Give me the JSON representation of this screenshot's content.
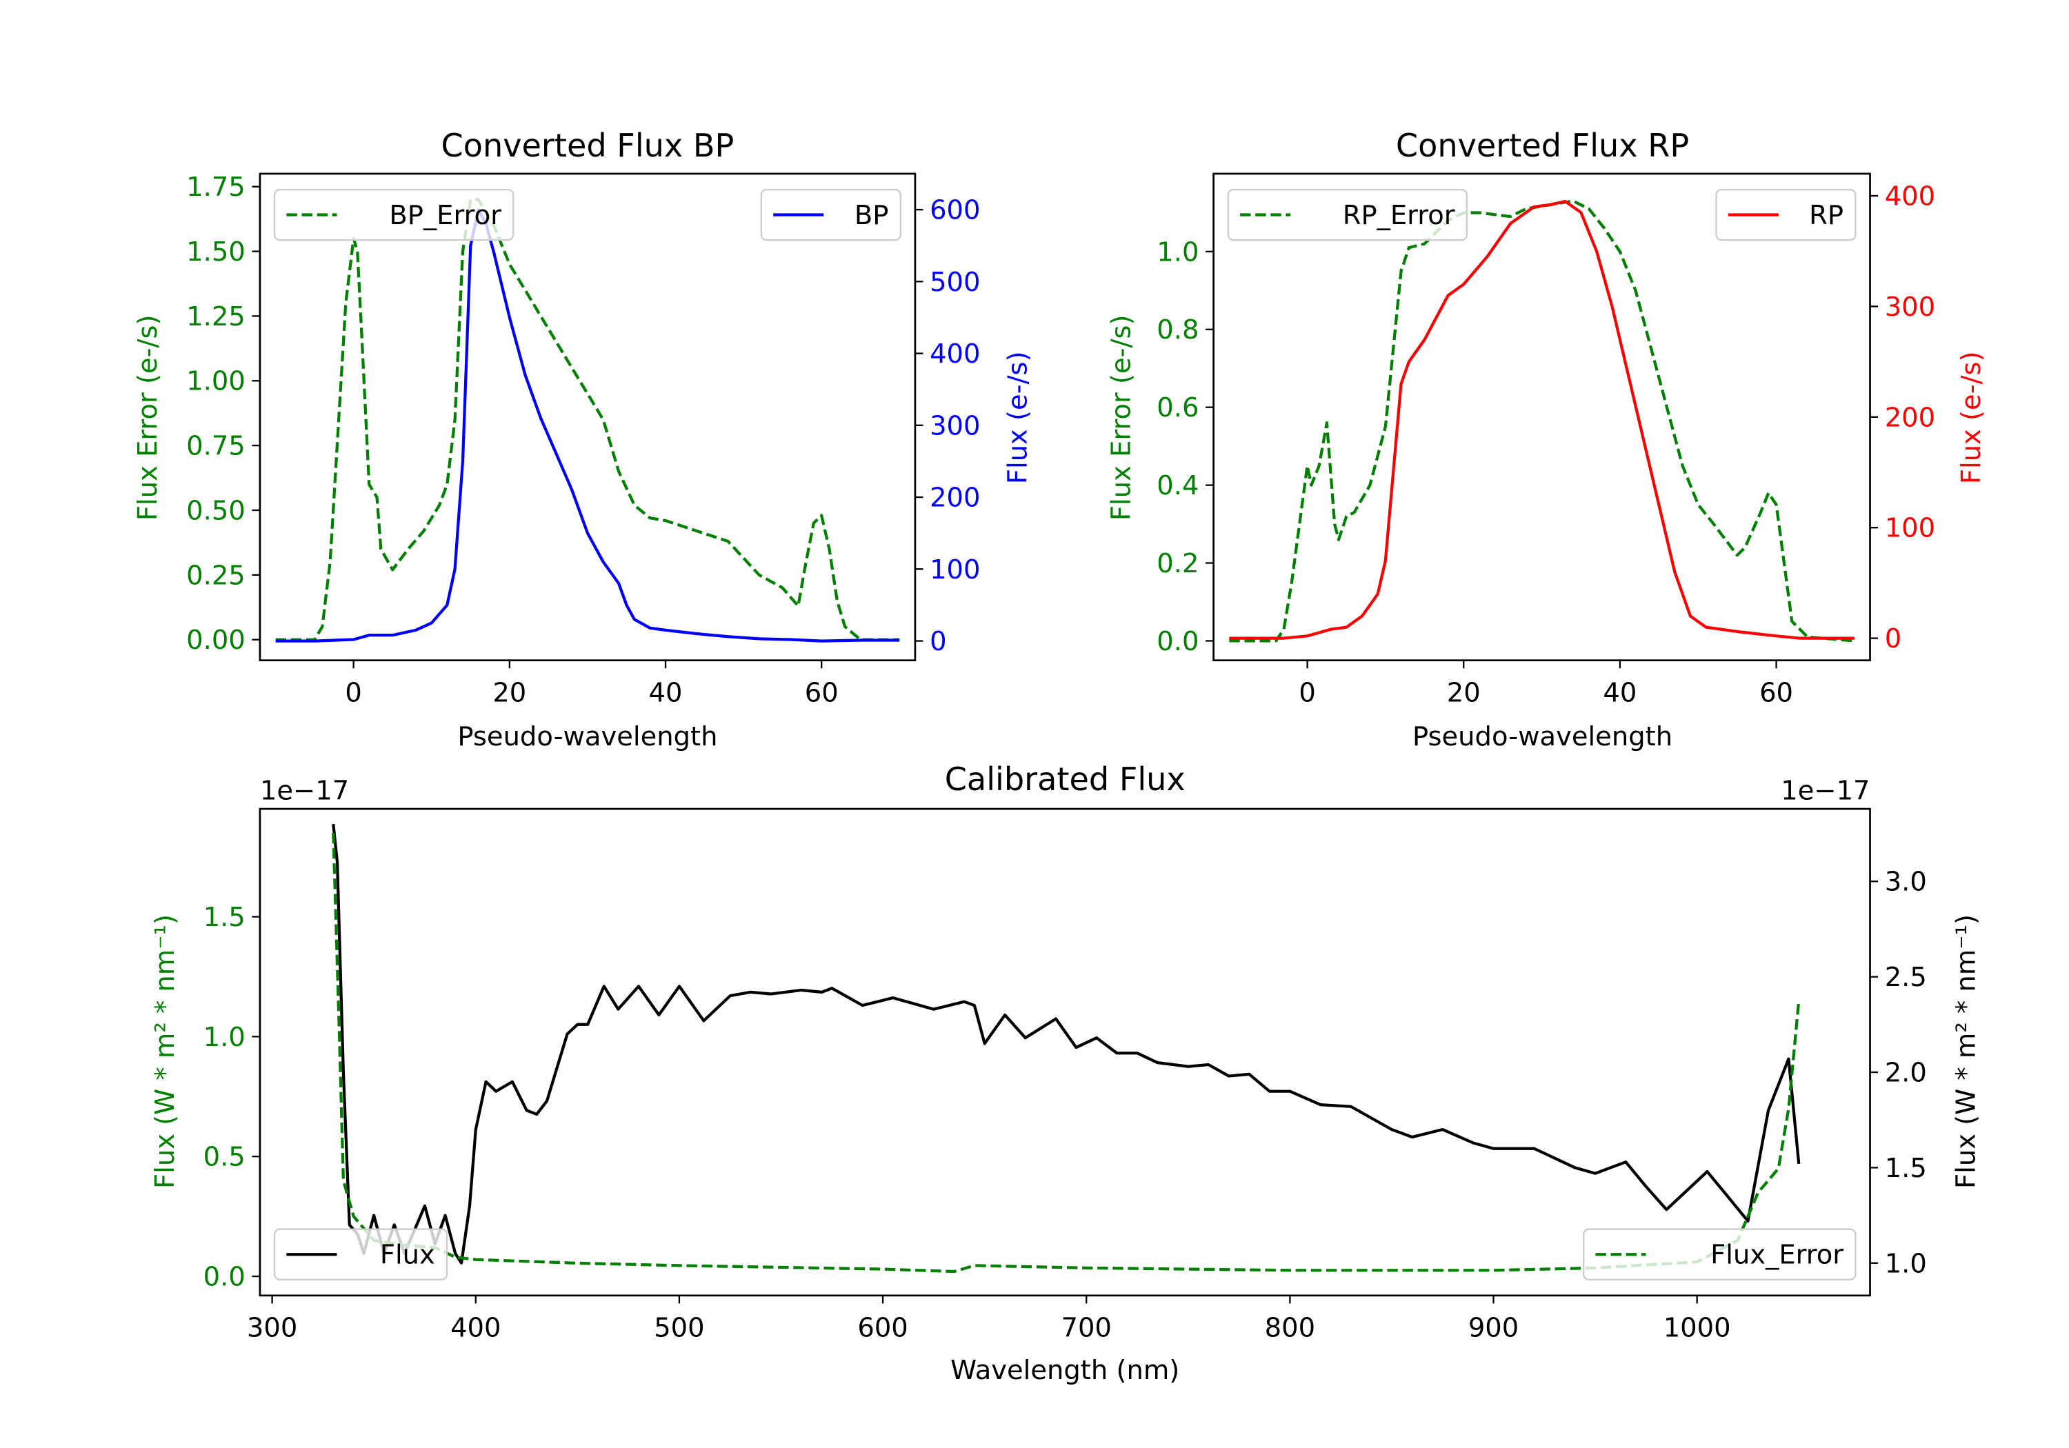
{
  "colors": {
    "green": "#008000",
    "blue": "#0000ff",
    "red": "#ff0000",
    "black": "#000000"
  },
  "chart_data": [
    {
      "type": "line",
      "title": "Converted Flux BP",
      "xlabel": "Pseudo-wavelength",
      "ylabel_left": "Flux Error (e-/s)",
      "ylabel_right": "Flux (e-/s)",
      "xlim": [
        -12,
        72
      ],
      "xticks": [
        0,
        20,
        40,
        60
      ],
      "ylim_left": [
        -0.08,
        1.8
      ],
      "yticks_left": [
        "0.00",
        "0.25",
        "0.50",
        "0.75",
        "1.00",
        "1.25",
        "1.50",
        "1.75"
      ],
      "ylim_right": [
        -27,
        650
      ],
      "yticks_right": [
        "0",
        "100",
        "200",
        "300",
        "400",
        "500",
        "600"
      ],
      "series": [
        {
          "name": "BP_Error",
          "axis": "left",
          "style": "dashed",
          "color": "#008000",
          "legend": "top-left",
          "x": [
            -10,
            -5,
            -4,
            -3,
            -2,
            -1,
            0,
            0.5,
            1,
            2,
            3,
            3.5,
            5,
            7,
            9,
            11,
            12,
            13,
            14,
            15,
            16,
            18,
            20,
            22,
            24,
            26,
            28,
            30,
            32,
            34,
            36,
            38,
            40,
            44,
            48,
            52,
            55,
            57,
            58,
            59,
            60,
            61,
            62,
            63,
            65,
            70
          ],
          "y": [
            0,
            0,
            0.05,
            0.3,
            0.8,
            1.3,
            1.55,
            1.5,
            1.2,
            0.6,
            0.55,
            0.35,
            0.27,
            0.35,
            0.42,
            0.52,
            0.6,
            0.85,
            1.5,
            1.7,
            1.7,
            1.6,
            1.45,
            1.35,
            1.25,
            1.15,
            1.05,
            0.95,
            0.85,
            0.65,
            0.52,
            0.47,
            0.46,
            0.42,
            0.38,
            0.25,
            0.2,
            0.13,
            0.3,
            0.45,
            0.48,
            0.35,
            0.15,
            0.05,
            0,
            0
          ]
        },
        {
          "name": "BP",
          "axis": "right",
          "style": "solid",
          "color": "#0000ff",
          "legend": "top-right",
          "x": [
            -10,
            -5,
            0,
            2,
            5,
            8,
            10,
            12,
            13,
            14,
            15,
            16,
            17,
            18,
            20,
            22,
            24,
            26,
            28,
            30,
            32,
            34,
            35,
            36,
            38,
            40,
            44,
            48,
            52,
            56,
            60,
            65,
            70
          ],
          "y": [
            0,
            0,
            2,
            8,
            8,
            15,
            25,
            50,
            100,
            250,
            550,
            600,
            580,
            540,
            450,
            370,
            310,
            260,
            210,
            150,
            110,
            80,
            50,
            30,
            18,
            15,
            10,
            6,
            3,
            2,
            0,
            1,
            1
          ]
        }
      ]
    },
    {
      "type": "line",
      "title": "Converted Flux RP",
      "xlabel": "Pseudo-wavelength",
      "ylabel_left": "Flux Error (e-/s)",
      "ylabel_right": "Flux (e-/s)",
      "xlim": [
        -12,
        72
      ],
      "xticks": [
        0,
        20,
        40,
        60
      ],
      "ylim_left": [
        -0.05,
        1.2
      ],
      "yticks_left": [
        "0.0",
        "0.2",
        "0.4",
        "0.6",
        "0.8",
        "1.0"
      ],
      "ylim_right": [
        -20,
        420
      ],
      "yticks_right": [
        "0",
        "100",
        "200",
        "300",
        "400"
      ],
      "series": [
        {
          "name": "RP_Error",
          "axis": "left",
          "style": "dashed",
          "color": "#008000",
          "legend": "top-left",
          "x": [
            -10,
            -4,
            -3,
            -2,
            -1,
            0,
            0.5,
            1.5,
            2.5,
            3.5,
            4,
            5,
            6,
            8,
            10,
            11,
            12,
            13,
            15,
            18,
            20,
            22,
            26,
            28,
            31,
            34,
            36,
            38,
            40,
            42,
            44,
            46,
            48,
            50,
            52,
            55,
            56,
            58,
            59,
            60,
            61,
            62,
            64,
            70
          ],
          "y": [
            0,
            0,
            0.03,
            0.15,
            0.3,
            0.45,
            0.4,
            0.45,
            0.56,
            0.3,
            0.26,
            0.32,
            0.33,
            0.4,
            0.55,
            0.75,
            0.95,
            1.01,
            1.02,
            1.08,
            1.1,
            1.1,
            1.09,
            1.11,
            1.12,
            1.13,
            1.11,
            1.06,
            1.0,
            0.9,
            0.75,
            0.6,
            0.45,
            0.35,
            0.3,
            0.22,
            0.24,
            0.33,
            0.38,
            0.35,
            0.2,
            0.05,
            0.01,
            0
          ]
        },
        {
          "name": "RP",
          "axis": "right",
          "style": "solid",
          "color": "#ff0000",
          "legend": "top-right",
          "x": [
            -10,
            -3,
            0,
            3,
            5,
            7,
            9,
            10,
            11,
            12,
            13,
            15,
            18,
            20,
            23,
            26,
            29,
            31,
            33,
            35,
            37,
            39,
            41,
            43,
            45,
            47,
            49,
            51,
            55,
            60,
            63,
            70
          ],
          "y": [
            0,
            0,
            2,
            8,
            10,
            20,
            40,
            70,
            150,
            230,
            250,
            270,
            310,
            320,
            345,
            375,
            390,
            392,
            395,
            385,
            350,
            300,
            240,
            180,
            120,
            60,
            20,
            10,
            6,
            2,
            0,
            0
          ]
        }
      ]
    },
    {
      "type": "line",
      "title": "Calibrated Flux",
      "xlabel": "Wavelength (nm)",
      "ylabel_left": "Flux (W * m² * nm⁻¹)",
      "ylabel_right": "Flux (W * m² * nm⁻¹)",
      "offset_left": "1e−17",
      "offset_right": "1e−17",
      "xlim": [
        294,
        1085
      ],
      "xticks": [
        300,
        400,
        500,
        600,
        700,
        800,
        900,
        1000
      ],
      "ylim_left": [
        -0.08,
        1.95
      ],
      "yticks_left": [
        "0.0",
        "0.5",
        "1.0",
        "1.5"
      ],
      "ylim_right": [
        0.83,
        3.38
      ],
      "yticks_right": [
        "1.0",
        "1.5",
        "2.0",
        "2.5",
        "3.0"
      ],
      "series": [
        {
          "name": "Flux",
          "axis": "right",
          "style": "solid",
          "color": "#000000",
          "legend": "bottom-left",
          "x": [
            330,
            332,
            335,
            338,
            342,
            345,
            350,
            355,
            360,
            365,
            375,
            380,
            385,
            390,
            393,
            397,
            400,
            405,
            410,
            418,
            425,
            430,
            435,
            445,
            450,
            455,
            463,
            470,
            480,
            490,
            500,
            512,
            525,
            535,
            545,
            560,
            570,
            575,
            590,
            605,
            625,
            640,
            645,
            650,
            660,
            670,
            685,
            695,
            705,
            715,
            725,
            735,
            750,
            760,
            770,
            780,
            790,
            800,
            815,
            830,
            850,
            860,
            875,
            890,
            900,
            920,
            940,
            950,
            965,
            975,
            985,
            995,
            1005,
            1015,
            1025,
            1035,
            1045,
            1050
          ],
          "y": [
            3.3,
            3.1,
            2.0,
            1.2,
            1.15,
            1.05,
            1.25,
            1.05,
            1.2,
            1.05,
            1.3,
            1.1,
            1.25,
            1.05,
            1.0,
            1.3,
            1.7,
            1.95,
            1.9,
            1.95,
            1.8,
            1.78,
            1.85,
            2.2,
            2.25,
            2.25,
            2.45,
            2.33,
            2.45,
            2.3,
            2.45,
            2.27,
            2.4,
            2.42,
            2.41,
            2.43,
            2.42,
            2.44,
            2.35,
            2.39,
            2.33,
            2.37,
            2.35,
            2.15,
            2.3,
            2.18,
            2.28,
            2.13,
            2.18,
            2.1,
            2.1,
            2.05,
            2.03,
            2.04,
            1.98,
            1.99,
            1.9,
            1.9,
            1.83,
            1.82,
            1.7,
            1.66,
            1.7,
            1.63,
            1.6,
            1.6,
            1.5,
            1.47,
            1.53,
            1.4,
            1.28,
            1.38,
            1.48,
            1.35,
            1.22,
            1.8,
            2.07,
            1.52
          ]
        },
        {
          "name": "Flux_Error",
          "axis": "left",
          "style": "dashed",
          "color": "#008000",
          "legend": "bottom-right",
          "x": [
            330,
            333,
            335,
            340,
            350,
            365,
            380,
            390,
            400,
            450,
            500,
            600,
            635,
            645,
            700,
            800,
            900,
            950,
            1000,
            1020,
            1030,
            1040,
            1045,
            1050
          ],
          "y": [
            1.85,
            1.0,
            0.4,
            0.25,
            0.15,
            0.13,
            0.12,
            0.08,
            0.07,
            0.055,
            0.045,
            0.03,
            0.02,
            0.045,
            0.035,
            0.025,
            0.025,
            0.035,
            0.06,
            0.15,
            0.35,
            0.45,
            0.7,
            1.15
          ]
        }
      ]
    }
  ]
}
